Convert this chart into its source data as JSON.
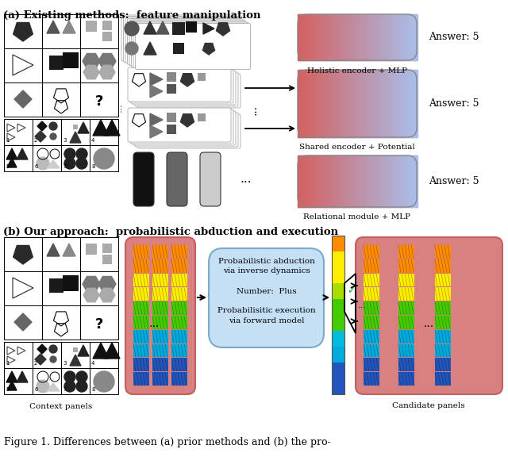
{
  "title_a": "(a) Existing methods:  feature manipulation",
  "title_b": "(b) Our approach:  probabilistic abduction and execution",
  "caption": "Figure 1. Differences between (a) prior methods and (b) the pro-",
  "answer_text": "Answer: 5",
  "label1": "Holistic encoder + MLP",
  "label2": "Shared encoder + Potential",
  "label3": "Relational module + MLP",
  "context_label": "Context panels",
  "candidate_label": "Candidate panels",
  "box_text": "Probabilistic abduction\nvia inverse dynamics\n\nNumber:  Plus\n\nProbabilisitic execution\nvia forward model",
  "bar_stripe_colors": [
    "#ff8c00",
    "#ff8c00",
    "#ffee00",
    "#ffee00",
    "#44cc00",
    "#44cc00",
    "#00aadd",
    "#00aadd",
    "#2255bb",
    "#2255bb"
  ],
  "single_bar_colors": [
    "#ff8c00",
    "#ffee00",
    "#ffee00",
    "#aadd00",
    "#44cc00",
    "#44cc00",
    "#00bbdd",
    "#00aadd",
    "#2255bb",
    "#2255bb"
  ],
  "pink_left": "#d46060",
  "pink_right": "#aabde8",
  "salmon_bg": "#d98080",
  "salmon_edge": "#c06060",
  "blue_fill": "#c5dff5",
  "blue_edge": "#7aaac8"
}
